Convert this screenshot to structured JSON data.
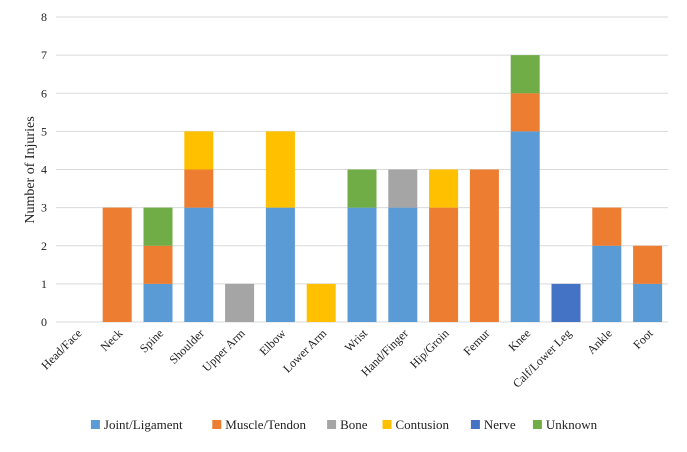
{
  "chart_data": {
    "type": "bar",
    "stacked": true,
    "title": "",
    "xlabel": "",
    "ylabel": "Number of Injuries",
    "ylim": [
      0,
      8
    ],
    "yticks": [
      0,
      1,
      2,
      3,
      4,
      5,
      6,
      7,
      8
    ],
    "grid": true,
    "legend_position": "bottom",
    "categories": [
      "Head/Face",
      "Neck",
      "Spine",
      "Shoulder",
      "Upper Arm",
      "Elbow",
      "Lower Arm",
      "Wrist",
      "Hand/Finger",
      "Hip/Groin",
      "Femur",
      "Knee",
      "Calf/Lower Leg",
      "Ankle",
      "Foot"
    ],
    "series": [
      {
        "name": "Joint/Ligament",
        "color": "#5B9BD5",
        "values": [
          0,
          0,
          1,
          3,
          0,
          3,
          0,
          3,
          3,
          0,
          0,
          5,
          0,
          2,
          1
        ]
      },
      {
        "name": "Muscle/Tendon",
        "color": "#ED7D31",
        "values": [
          0,
          3,
          1,
          1,
          0,
          0,
          0,
          0,
          0,
          3,
          4,
          1,
          0,
          1,
          1
        ]
      },
      {
        "name": "Bone",
        "color": "#A5A5A5",
        "values": [
          0,
          0,
          0,
          0,
          1,
          0,
          0,
          0,
          1,
          0,
          0,
          0,
          0,
          0,
          0
        ]
      },
      {
        "name": "Contusion",
        "color": "#FFC000",
        "values": [
          0,
          0,
          0,
          1,
          0,
          2,
          1,
          0,
          0,
          1,
          0,
          0,
          0,
          0,
          0
        ]
      },
      {
        "name": "Nerve",
        "color": "#4472C4",
        "values": [
          0,
          0,
          0,
          0,
          0,
          0,
          0,
          0,
          0,
          0,
          0,
          0,
          1,
          0,
          0
        ]
      },
      {
        "name": "Unknown",
        "color": "#70AD47",
        "values": [
          0,
          0,
          1,
          0,
          0,
          0,
          0,
          1,
          0,
          0,
          0,
          1,
          0,
          0,
          0
        ]
      }
    ]
  }
}
